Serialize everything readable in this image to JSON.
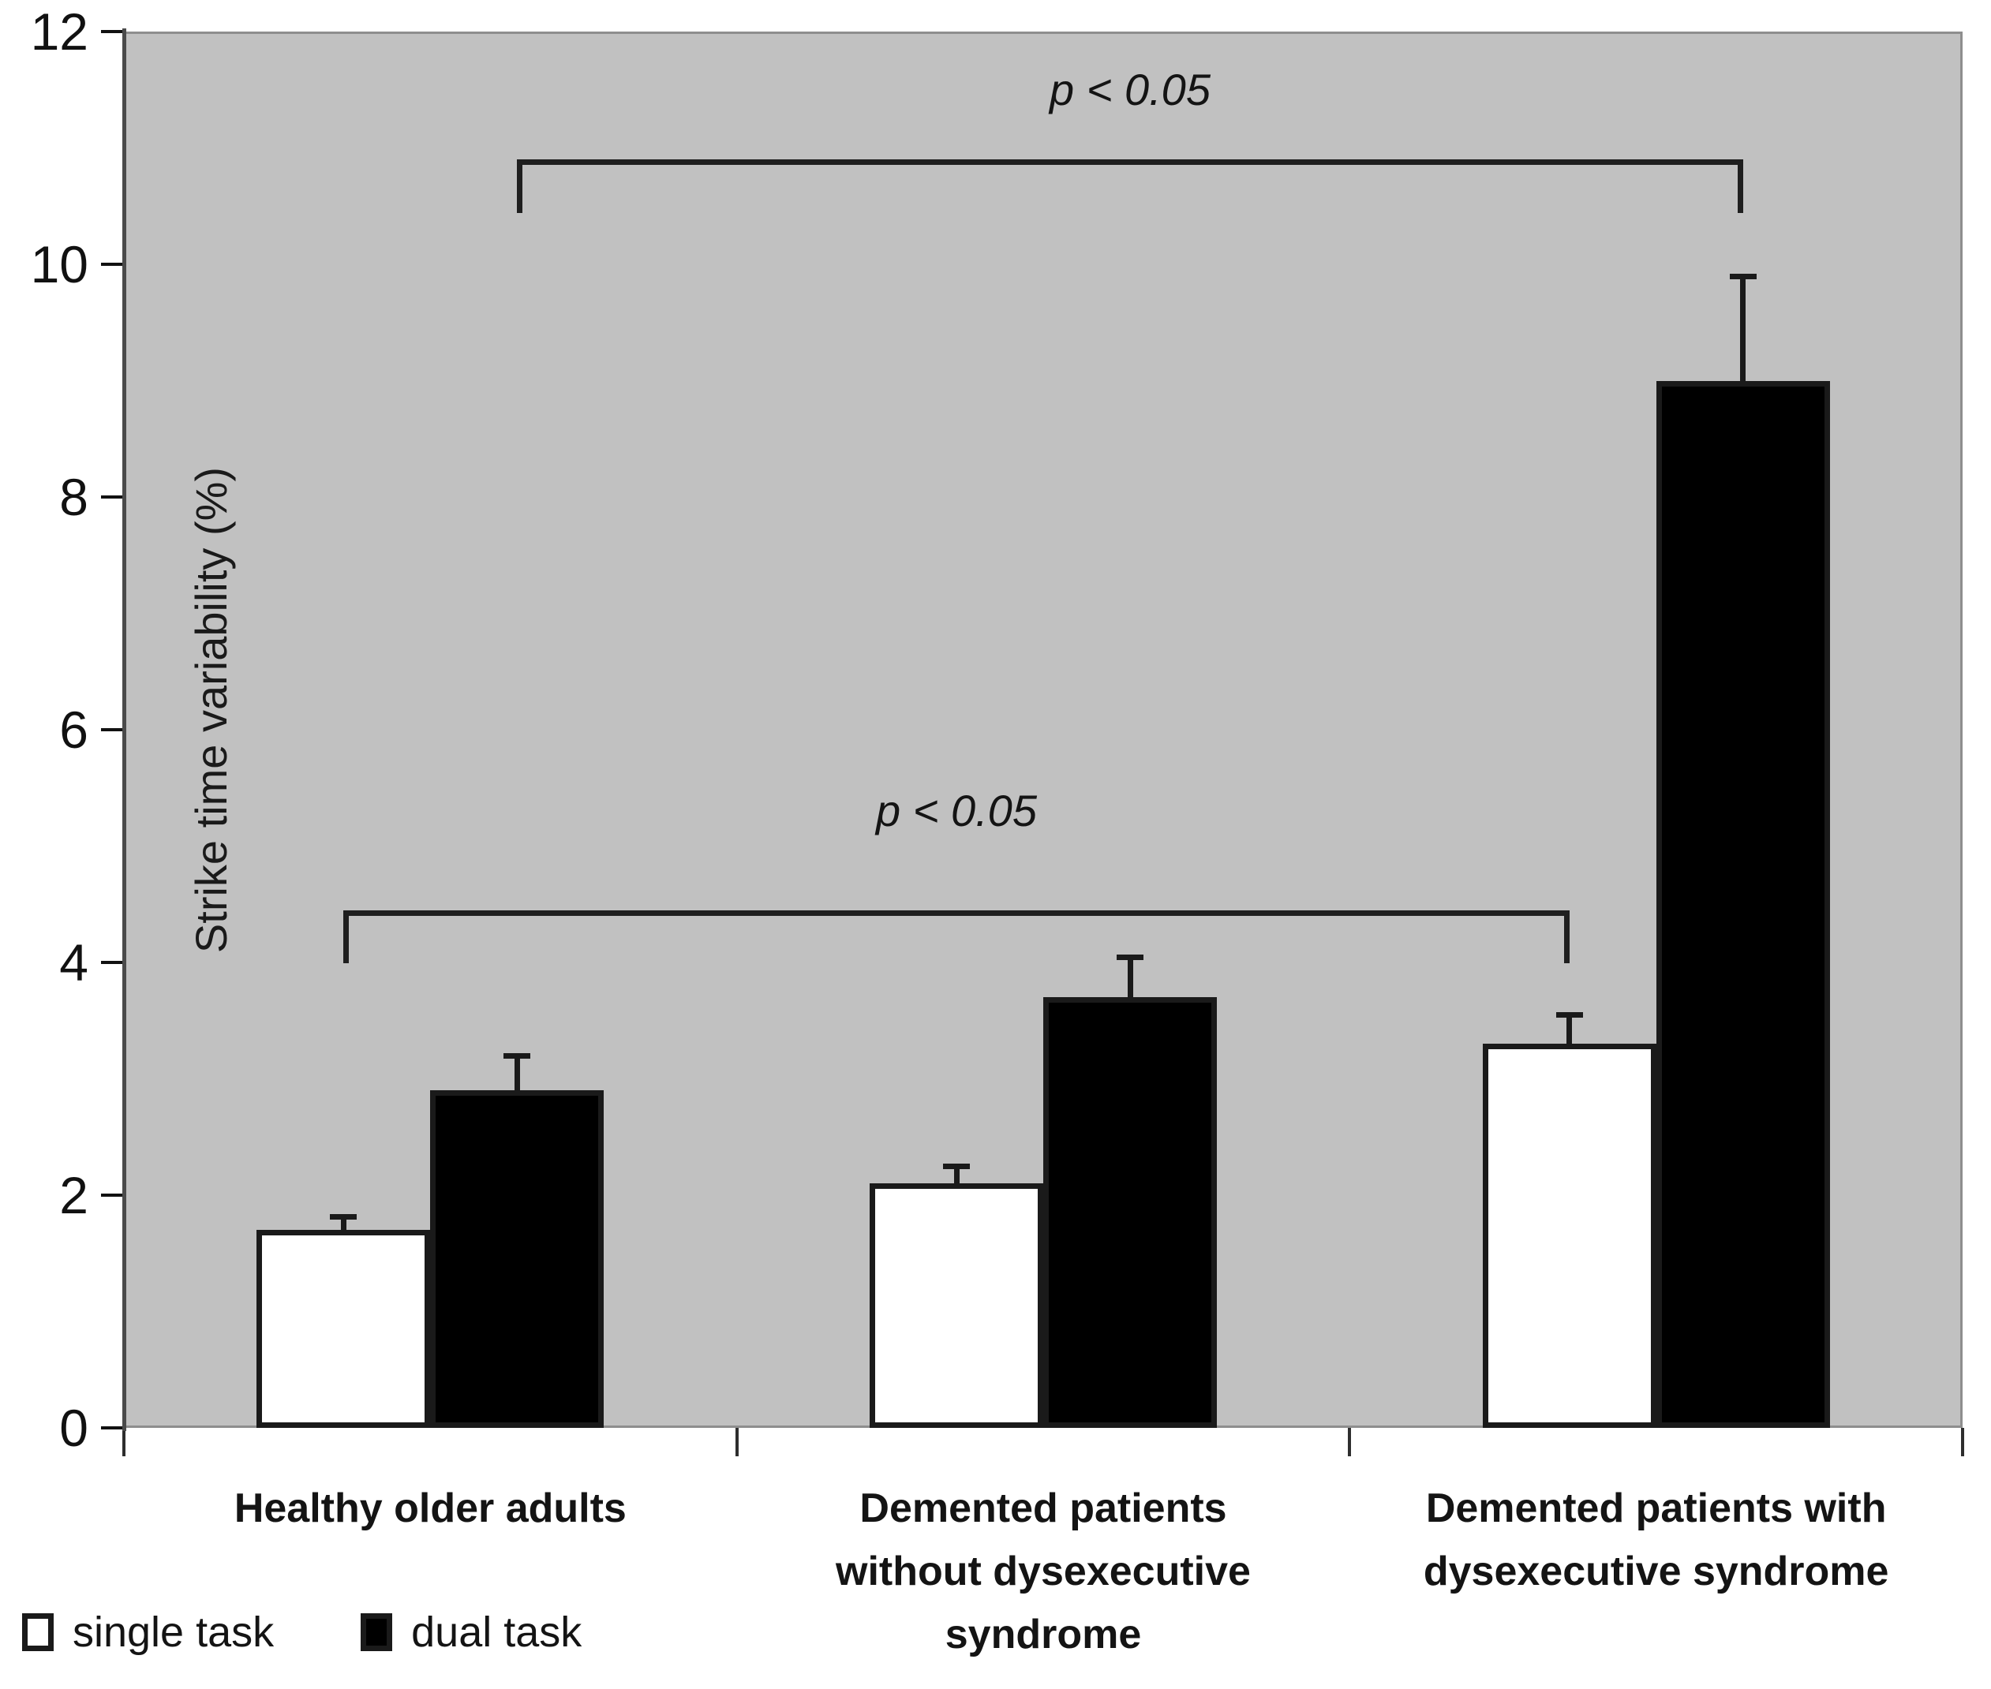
{
  "chart_data": {
    "type": "bar",
    "title": "",
    "xlabel": "",
    "ylabel": "Strike time variability (%)",
    "ylim": [
      0,
      12
    ],
    "yticks": [
      0,
      2,
      4,
      6,
      8,
      10,
      12
    ],
    "grid": false,
    "plot_background": "#c1c1c1",
    "legend_position": "bottom-left",
    "categories": [
      "Healthy older adults",
      "Demented patients\nwithout dysexecutive\nsyndrome",
      "Demented patients with\ndysexecutive syndrome"
    ],
    "series": [
      {
        "name": "single task",
        "fill": "#ffffff",
        "values": [
          1.7,
          2.1,
          3.3
        ],
        "errors_plus": [
          0.12,
          0.15,
          0.25
        ]
      },
      {
        "name": "dual task",
        "fill": "#000000",
        "values": [
          2.9,
          3.7,
          9.0
        ],
        "errors_plus": [
          0.3,
          0.35,
          0.9
        ]
      }
    ],
    "significance_brackets": [
      {
        "label": "p < 0.05",
        "series": 1,
        "from_category": 0,
        "to_category": 2,
        "y": 10.9,
        "tick_drop": 0.46,
        "label_y": 11.5
      },
      {
        "label": "p < 0.05",
        "series": 0,
        "from_category": 0,
        "to_category": 2,
        "y": 4.45,
        "tick_drop": 0.46,
        "label_y": 5.3
      }
    ]
  }
}
